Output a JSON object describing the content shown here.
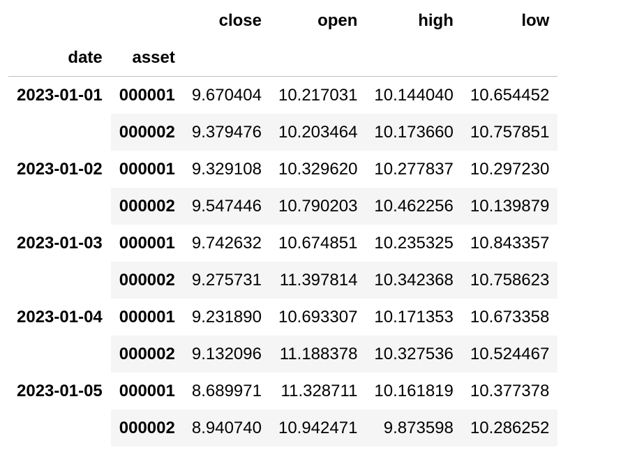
{
  "table": {
    "columns": [
      "close",
      "open",
      "high",
      "low"
    ],
    "index_names": [
      "date",
      "asset"
    ],
    "groups": [
      {
        "date": "2023-01-01",
        "rows": [
          {
            "asset": "000001",
            "values": [
              "9.670404",
              "10.217031",
              "10.144040",
              "10.654452"
            ]
          },
          {
            "asset": "000002",
            "values": [
              "9.379476",
              "10.203464",
              "10.173660",
              "10.757851"
            ]
          }
        ]
      },
      {
        "date": "2023-01-02",
        "rows": [
          {
            "asset": "000001",
            "values": [
              "9.329108",
              "10.329620",
              "10.277837",
              "10.297230"
            ]
          },
          {
            "asset": "000002",
            "values": [
              "9.547446",
              "10.790203",
              "10.462256",
              "10.139879"
            ]
          }
        ]
      },
      {
        "date": "2023-01-03",
        "rows": [
          {
            "asset": "000001",
            "values": [
              "9.742632",
              "10.674851",
              "10.235325",
              "10.843357"
            ]
          },
          {
            "asset": "000002",
            "values": [
              "9.275731",
              "11.397814",
              "10.342368",
              "10.758623"
            ]
          }
        ]
      },
      {
        "date": "2023-01-04",
        "rows": [
          {
            "asset": "000001",
            "values": [
              "9.231890",
              "10.693307",
              "10.171353",
              "10.673358"
            ]
          },
          {
            "asset": "000002",
            "values": [
              "9.132096",
              "11.188378",
              "10.327536",
              "10.524467"
            ]
          }
        ]
      },
      {
        "date": "2023-01-05",
        "rows": [
          {
            "asset": "000001",
            "values": [
              "8.689971",
              "11.328711",
              "10.161819",
              "10.377378"
            ]
          },
          {
            "asset": "000002",
            "values": [
              "8.940740",
              "10.942471",
              "9.873598",
              "10.286252"
            ]
          }
        ]
      }
    ]
  }
}
